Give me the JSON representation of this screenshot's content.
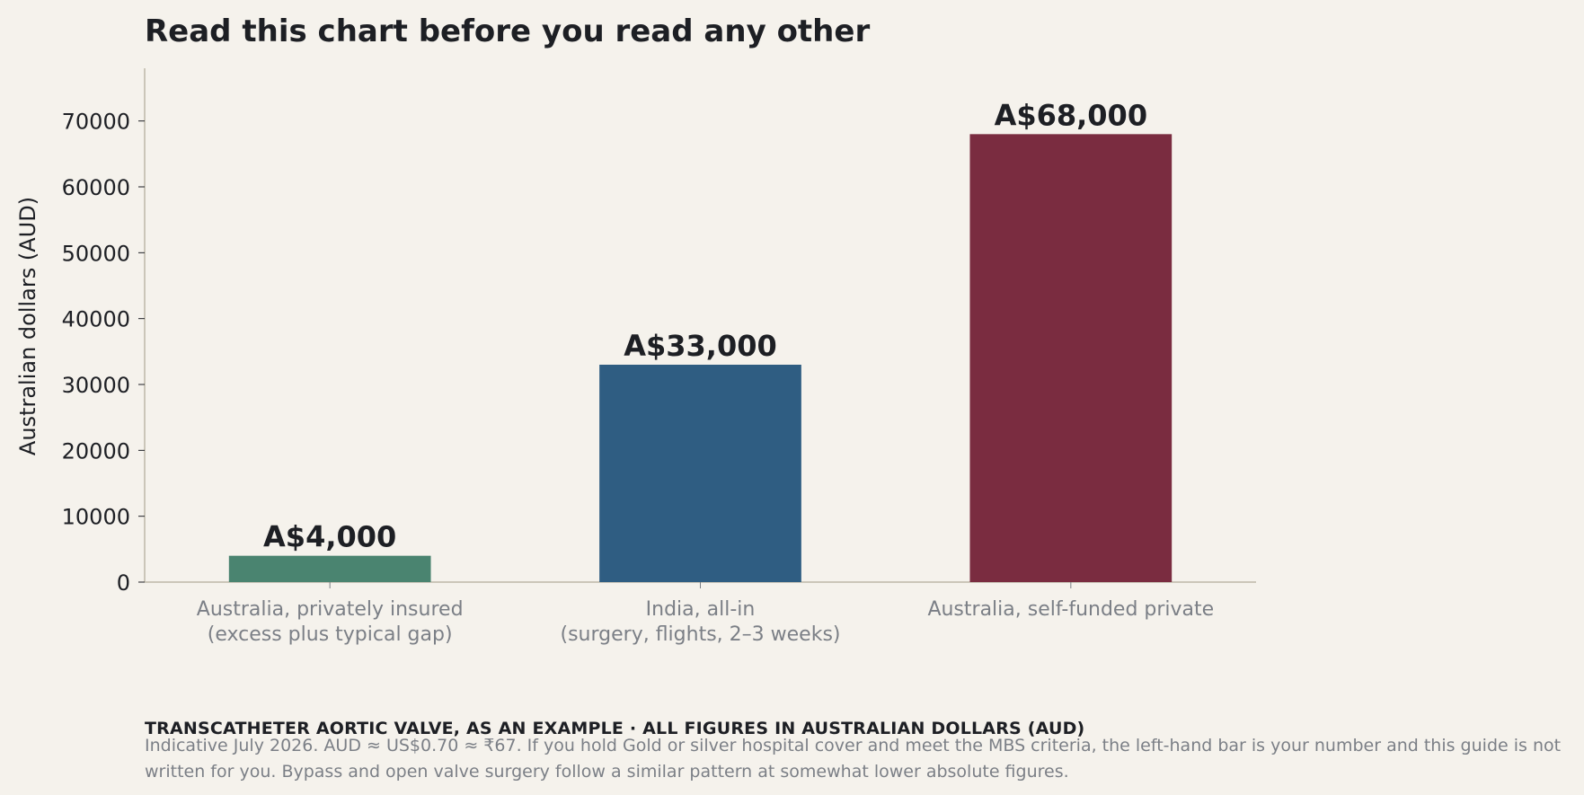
{
  "chart_data": {
    "type": "bar",
    "title": "Read this chart before you read any other",
    "ylabel": "Australian dollars (AUD)",
    "xlabel": "",
    "ylim": [
      0,
      78000
    ],
    "yticks": [
      0,
      10000,
      20000,
      30000,
      40000,
      50000,
      60000,
      70000
    ],
    "grid": false,
    "categories": [
      [
        "Australia, privately insured",
        "(excess plus typical gap)"
      ],
      [
        "India, all-in",
        "(surgery, flights, 2–3 weeks)"
      ],
      [
        "Australia, self-funded private"
      ]
    ],
    "values": [
      4000,
      33000,
      68000
    ],
    "data_labels": [
      "A$4,000",
      "A$33,000",
      "A$68,000"
    ],
    "colors": [
      "#4a8470",
      "#2f5d82",
      "#7a2c40"
    ]
  },
  "footer": {
    "heading": "TRANSCATHETER AORTIC VALVE, AS AN EXAMPLE · ALL FIGURES IN AUSTRALIAN DOLLARS (AUD)",
    "note": "Indicative July 2026. AUD ≈ US$0.70 ≈ ₹67. If you hold Gold or silver hospital cover and meet the MBS criteria, the left-hand bar is your number and this guide is not written for you. Bypass and open valve surgery follow a similar pattern at somewhat lower absolute figures."
  }
}
